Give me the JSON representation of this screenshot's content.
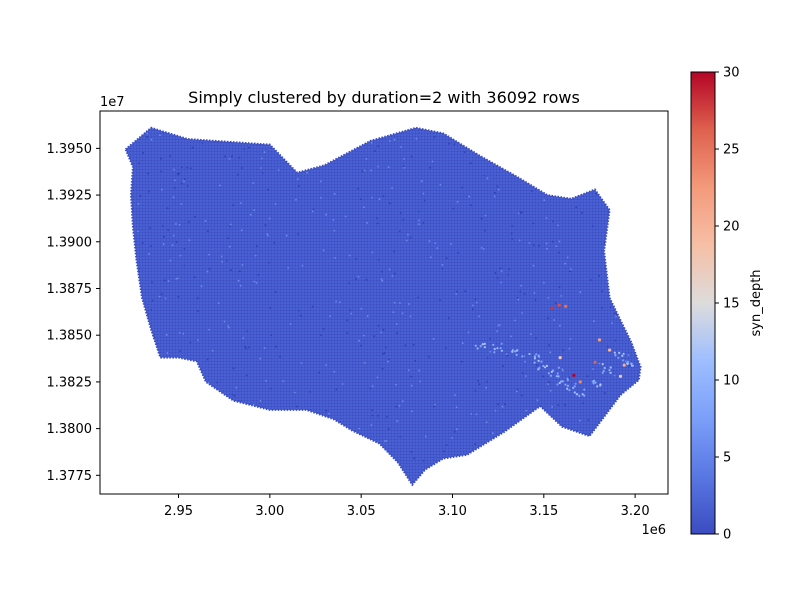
{
  "chart_data": {
    "type": "scatter",
    "title": "Simply clustered by duration=2 with 36092 rows",
    "xlabel": "",
    "ylabel": "",
    "x_offset_label": "1e6",
    "y_offset_label": "1e7",
    "xlim": [
      2.907,
      3.218
    ],
    "ylim": [
      1.3765,
      1.397
    ],
    "x_ticks": [
      2.95,
      3.0,
      3.05,
      3.1,
      3.15,
      3.2
    ],
    "x_tick_labels": [
      "2.95",
      "3.00",
      "3.05",
      "3.10",
      "3.15",
      "3.20"
    ],
    "y_ticks": [
      1.3775,
      1.38,
      1.3825,
      1.385,
      1.3875,
      1.39,
      1.3925,
      1.395
    ],
    "y_tick_labels": [
      "1.3775",
      "1.3800",
      "1.3825",
      "1.3850",
      "1.3875",
      "1.3900",
      "1.3925",
      "1.3950"
    ],
    "colorbar": {
      "label": "syn_depth",
      "colormap": "coolwarm",
      "min": 0,
      "max": 30,
      "ticks": [
        0,
        5,
        10,
        15,
        20,
        25,
        30
      ],
      "tick_labels": [
        "0",
        "5",
        "10",
        "15",
        "20",
        "25",
        "30"
      ]
    },
    "point_color": "#3b4cc0",
    "grid": false,
    "boundary": [
      [
        2.921,
        1.39495
      ],
      [
        2.935,
        1.3961
      ],
      [
        2.955,
        1.3955
      ],
      [
        2.985,
        1.3953
      ],
      [
        3.0,
        1.3952
      ],
      [
        3.015,
        1.3937
      ],
      [
        3.03,
        1.3941
      ],
      [
        3.055,
        1.3954
      ],
      [
        3.08,
        1.3961
      ],
      [
        3.095,
        1.3958
      ],
      [
        3.115,
        1.3946
      ],
      [
        3.135,
        1.3935
      ],
      [
        3.152,
        1.3925
      ],
      [
        3.165,
        1.3923
      ],
      [
        3.178,
        1.3928
      ],
      [
        3.186,
        1.3917
      ],
      [
        3.183,
        1.3895
      ],
      [
        3.186,
        1.387
      ],
      [
        3.192,
        1.3858
      ],
      [
        3.198,
        1.3846
      ],
      [
        3.203,
        1.3833
      ],
      [
        3.202,
        1.3826
      ],
      [
        3.192,
        1.3818
      ],
      [
        3.182,
        1.3805
      ],
      [
        3.175,
        1.3796
      ],
      [
        3.16,
        1.3801
      ],
      [
        3.148,
        1.3812
      ],
      [
        3.128,
        1.3798
      ],
      [
        3.108,
        1.3786
      ],
      [
        3.095,
        1.3784
      ],
      [
        3.085,
        1.3778
      ],
      [
        3.078,
        1.377
      ],
      [
        3.07,
        1.3782
      ],
      [
        3.06,
        1.3792
      ],
      [
        3.045,
        1.3799
      ],
      [
        3.035,
        1.3805
      ],
      [
        3.02,
        1.381
      ],
      [
        3.0,
        1.381
      ],
      [
        2.98,
        1.3815
      ],
      [
        2.965,
        1.3825
      ],
      [
        2.96,
        1.3836
      ],
      [
        2.95,
        1.3838
      ],
      [
        2.94,
        1.3838
      ],
      [
        2.935,
        1.3853
      ],
      [
        2.93,
        1.387
      ],
      [
        2.927,
        1.389
      ],
      [
        2.925,
        1.3908
      ],
      [
        2.924,
        1.3925
      ],
      [
        2.925,
        1.394
      ]
    ],
    "high_depth_points": [
      {
        "x": 3.1545,
        "y": 1.38645,
        "depth": 28
      },
      {
        "x": 3.1585,
        "y": 1.3866,
        "depth": 27
      },
      {
        "x": 3.162,
        "y": 1.38655,
        "depth": 25
      },
      {
        "x": 3.1665,
        "y": 1.38285,
        "depth": 30
      },
      {
        "x": 3.17,
        "y": 1.3825,
        "depth": 24
      },
      {
        "x": 3.178,
        "y": 1.38355,
        "depth": 26
      },
      {
        "x": 3.1805,
        "y": 1.38475,
        "depth": 22
      },
      {
        "x": 3.186,
        "y": 1.3842,
        "depth": 20
      },
      {
        "x": 3.194,
        "y": 1.3834,
        "depth": 21
      },
      {
        "x": 3.159,
        "y": 1.3838,
        "depth": 18
      },
      {
        "x": 3.192,
        "y": 1.3828,
        "depth": 17
      }
    ],
    "medium_depth_band": [
      [
        3.115,
        1.3844
      ],
      [
        3.125,
        1.3843
      ],
      [
        3.135,
        1.3841
      ],
      [
        3.145,
        1.38375
      ],
      [
        3.15,
        1.3834
      ],
      [
        3.155,
        1.383
      ],
      [
        3.16,
        1.3826
      ],
      [
        3.165,
        1.3822
      ],
      [
        3.17,
        1.382
      ],
      [
        3.178,
        1.3825
      ],
      [
        3.185,
        1.3832
      ],
      [
        3.192,
        1.3838
      ],
      [
        3.198,
        1.3836
      ]
    ]
  }
}
